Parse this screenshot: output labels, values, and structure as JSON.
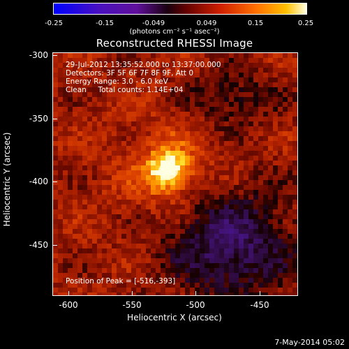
{
  "colorbar": {
    "ticks": [
      "-0.25",
      "-0.15",
      "-0.049",
      "0.049",
      "0.15",
      "0.25"
    ],
    "units": "(photons cm⁻² s⁻¹ asec⁻²)"
  },
  "title": "Reconstructed RHESSI Image",
  "info": {
    "line1": "29-Jul-2012 13:35:52.000 to 13:37:00.000",
    "line2": "Detectors: 3F 5F 6F 7F 8F 9F, Att 0",
    "line3": "Energy Range: 3.0 - 6.0 keV",
    "line4": "Clean     Total counts: 1.14E+04"
  },
  "peak": "Position of Peak = [-516,-393]",
  "axes": {
    "xlabel": "Heliocentric X (arcsec)",
    "ylabel": "Heliocentric Y (arcsec)",
    "xticks": [
      "-600",
      "-550",
      "-500",
      "-450"
    ],
    "yticks": [
      "-300",
      "-350",
      "-400",
      "-450"
    ]
  },
  "footer": "7-May-2014 05:02",
  "colors": {
    "background": "#000000",
    "peak": "#ffffe0",
    "core": "#ffd000",
    "glow": "#ff5000",
    "body": "#b02000",
    "dark": "#1a0000",
    "negative": "#5a1a90"
  }
}
